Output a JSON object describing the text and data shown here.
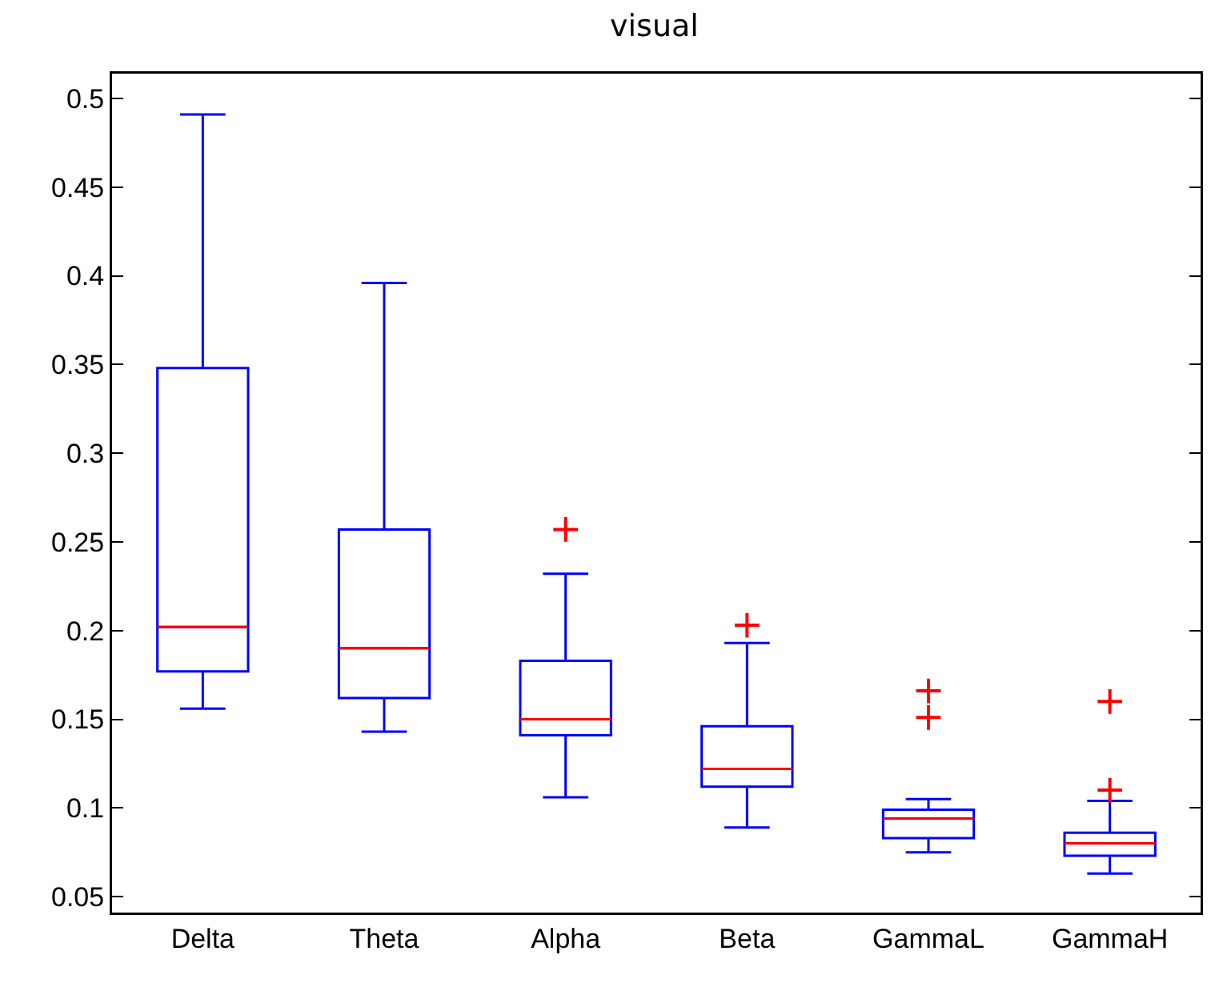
{
  "chart_data": {
    "type": "box",
    "title": "visual",
    "categories": [
      "Delta",
      "Theta",
      "Alpha",
      "Beta",
      "GammaL",
      "GammaH"
    ],
    "ylim": [
      0.041,
      0.514
    ],
    "yticks": [
      0.05,
      0.1,
      0.15,
      0.2,
      0.25,
      0.3,
      0.35,
      0.4,
      0.45,
      0.5
    ],
    "grid": false,
    "marker": "cross",
    "series": [
      {
        "color": "#0000ff",
        "boxes": [
          {
            "low": 0.156,
            "q1": 0.177,
            "median": 0.202,
            "q3": 0.348,
            "high": 0.491
          },
          {
            "low": 0.143,
            "q1": 0.162,
            "median": 0.19,
            "q3": 0.257,
            "high": 0.396
          },
          {
            "low": 0.106,
            "q1": 0.141,
            "median": 0.15,
            "q3": 0.183,
            "high": 0.232,
            "outliers": [
              0.257
            ]
          },
          {
            "low": 0.089,
            "q1": 0.112,
            "median": 0.122,
            "q3": 0.146,
            "high": 0.193,
            "outliers": [
              0.203
            ]
          },
          {
            "low": 0.075,
            "q1": 0.083,
            "median": 0.094,
            "q3": 0.099,
            "high": 0.105,
            "outliers": [
              0.151,
              0.166
            ]
          },
          {
            "low": 0.063,
            "q1": 0.073,
            "median": 0.08,
            "q3": 0.086,
            "high": 0.104,
            "outliers": [
              0.11,
              0.16
            ]
          }
        ]
      }
    ]
  }
}
